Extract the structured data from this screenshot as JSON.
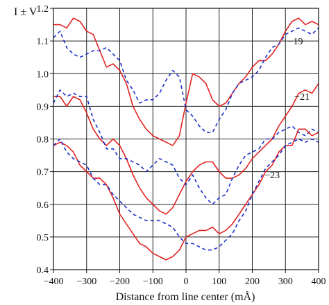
{
  "chart_data": {
    "type": "line",
    "title": "",
    "xlabel": "Distance from line center (mÅ)",
    "ylabel": "I ± V",
    "xlim": [
      -400,
      400
    ],
    "ylim": [
      0.4,
      1.2
    ],
    "x_ticks": [
      -400,
      -300,
      -200,
      -100,
      0,
      100,
      200,
      300,
      400
    ],
    "x_tick_labels": [
      "−400",
      "−300",
      "−200",
      "−100",
      "0",
      "100",
      "200",
      "300",
      "400"
    ],
    "y_ticks": [
      0.4,
      0.5,
      0.6,
      0.7,
      0.8,
      0.9,
      1.0,
      1.1,
      1.2
    ],
    "y_tick_labels": [
      "0.4",
      "0.5",
      "0.6",
      "0.7",
      "0.8",
      "0.9",
      "1.0",
      "1.1",
      "1.2"
    ],
    "grid": true,
    "colors": {
      "solid": "#e32222",
      "dashed": "#1a2dc8",
      "grid": "#222222",
      "axes": "#111111"
    },
    "annotations": [
      {
        "text": "−19",
        "x": 330,
        "y": 1.09
      },
      {
        "text": "−21",
        "x": 350,
        "y": 0.92
      },
      {
        "text": "−23",
        "x": 260,
        "y": 0.68
      }
    ],
    "series": [
      {
        "line_style": "solid",
        "color": "#e32222",
        "points": [
          [
            -400,
            1.15
          ],
          [
            -380,
            1.15
          ],
          [
            -360,
            1.14
          ],
          [
            -340,
            1.17
          ],
          [
            -320,
            1.16
          ],
          [
            -300,
            1.13
          ],
          [
            -280,
            1.12
          ],
          [
            -260,
            1.07
          ],
          [
            -240,
            1.02
          ],
          [
            -220,
            1.03
          ],
          [
            -200,
            1.01
          ],
          [
            -180,
            0.97
          ],
          [
            -160,
            0.9
          ],
          [
            -140,
            0.86
          ],
          [
            -120,
            0.83
          ],
          [
            -100,
            0.81
          ],
          [
            -80,
            0.8
          ],
          [
            -60,
            0.79
          ],
          [
            -40,
            0.78
          ],
          [
            -20,
            0.81
          ],
          [
            0,
            0.91
          ],
          [
            20,
            1.0
          ],
          [
            40,
            0.99
          ],
          [
            60,
            0.97
          ],
          [
            80,
            0.92
          ],
          [
            100,
            0.9
          ],
          [
            120,
            0.91
          ],
          [
            140,
            0.94
          ],
          [
            160,
            0.97
          ],
          [
            180,
            0.99
          ],
          [
            200,
            1.02
          ],
          [
            220,
            1.04
          ],
          [
            240,
            1.04
          ],
          [
            260,
            1.06
          ],
          [
            280,
            1.09
          ],
          [
            300,
            1.13
          ],
          [
            320,
            1.16
          ],
          [
            340,
            1.17
          ],
          [
            360,
            1.15
          ],
          [
            380,
            1.16
          ],
          [
            400,
            1.15
          ]
        ]
      },
      {
        "line_style": "dashed",
        "color": "#1a2dc8",
        "points": [
          [
            -400,
            1.11
          ],
          [
            -380,
            1.13
          ],
          [
            -360,
            1.08
          ],
          [
            -340,
            1.06
          ],
          [
            -320,
            1.05
          ],
          [
            -300,
            1.06
          ],
          [
            -280,
            1.07
          ],
          [
            -260,
            1.07
          ],
          [
            -240,
            1.08
          ],
          [
            -220,
            1.06
          ],
          [
            -200,
            1.04
          ],
          [
            -180,
            0.98
          ],
          [
            -160,
            0.95
          ],
          [
            -140,
            0.91
          ],
          [
            -120,
            0.92
          ],
          [
            -100,
            0.92
          ],
          [
            -80,
            0.94
          ],
          [
            -60,
            0.98
          ],
          [
            -40,
            1.01
          ],
          [
            -20,
            0.99
          ],
          [
            0,
            0.89
          ],
          [
            20,
            0.87
          ],
          [
            40,
            0.84
          ],
          [
            60,
            0.82
          ],
          [
            80,
            0.82
          ],
          [
            100,
            0.86
          ],
          [
            120,
            0.89
          ],
          [
            140,
            0.94
          ],
          [
            160,
            0.97
          ],
          [
            180,
            0.98
          ],
          [
            200,
            0.99
          ],
          [
            220,
            1.01
          ],
          [
            240,
            1.05
          ],
          [
            260,
            1.08
          ],
          [
            280,
            1.09
          ],
          [
            300,
            1.12
          ],
          [
            320,
            1.13
          ],
          [
            340,
            1.14
          ],
          [
            360,
            1.13
          ],
          [
            380,
            1.12
          ],
          [
            400,
            1.14
          ]
        ]
      },
      {
        "line_style": "solid",
        "color": "#e32222",
        "points": [
          [
            -400,
            0.93
          ],
          [
            -380,
            0.93
          ],
          [
            -360,
            0.9
          ],
          [
            -340,
            0.93
          ],
          [
            -320,
            0.92
          ],
          [
            -300,
            0.88
          ],
          [
            -280,
            0.83
          ],
          [
            -260,
            0.8
          ],
          [
            -240,
            0.78
          ],
          [
            -220,
            0.8
          ],
          [
            -200,
            0.78
          ],
          [
            -180,
            0.74
          ],
          [
            -160,
            0.69
          ],
          [
            -140,
            0.65
          ],
          [
            -120,
            0.62
          ],
          [
            -100,
            0.6
          ],
          [
            -80,
            0.58
          ],
          [
            -60,
            0.57
          ],
          [
            -40,
            0.59
          ],
          [
            -20,
            0.63
          ],
          [
            0,
            0.67
          ],
          [
            20,
            0.7
          ],
          [
            40,
            0.72
          ],
          [
            60,
            0.73
          ],
          [
            80,
            0.73
          ],
          [
            100,
            0.7
          ],
          [
            120,
            0.68
          ],
          [
            140,
            0.68
          ],
          [
            160,
            0.69
          ],
          [
            180,
            0.71
          ],
          [
            200,
            0.74
          ],
          [
            220,
            0.76
          ],
          [
            240,
            0.78
          ],
          [
            260,
            0.8
          ],
          [
            280,
            0.84
          ],
          [
            300,
            0.87
          ],
          [
            320,
            0.9
          ],
          [
            340,
            0.94
          ],
          [
            360,
            0.95
          ],
          [
            380,
            0.94
          ],
          [
            400,
            0.97
          ]
        ]
      },
      {
        "line_style": "dashed",
        "color": "#1a2dc8",
        "points": [
          [
            -400,
            0.91
          ],
          [
            -380,
            0.95
          ],
          [
            -360,
            0.93
          ],
          [
            -340,
            0.94
          ],
          [
            -320,
            0.93
          ],
          [
            -300,
            0.93
          ],
          [
            -280,
            0.86
          ],
          [
            -260,
            0.82
          ],
          [
            -240,
            0.77
          ],
          [
            -220,
            0.77
          ],
          [
            -200,
            0.74
          ],
          [
            -180,
            0.74
          ],
          [
            -160,
            0.73
          ],
          [
            -140,
            0.72
          ],
          [
            -120,
            0.7
          ],
          [
            -100,
            0.72
          ],
          [
            -80,
            0.74
          ],
          [
            -60,
            0.73
          ],
          [
            -40,
            0.72
          ],
          [
            -20,
            0.68
          ],
          [
            0,
            0.66
          ],
          [
            20,
            0.69
          ],
          [
            40,
            0.65
          ],
          [
            60,
            0.62
          ],
          [
            80,
            0.6
          ],
          [
            100,
            0.62
          ],
          [
            120,
            0.63
          ],
          [
            140,
            0.68
          ],
          [
            160,
            0.72
          ],
          [
            180,
            0.75
          ],
          [
            200,
            0.76
          ],
          [
            220,
            0.77
          ],
          [
            240,
            0.8
          ],
          [
            260,
            0.8
          ],
          [
            280,
            0.82
          ],
          [
            300,
            0.83
          ],
          [
            320,
            0.84
          ],
          [
            340,
            0.82
          ],
          [
            360,
            0.81
          ],
          [
            380,
            0.83
          ],
          [
            400,
            0.82
          ]
        ]
      },
      {
        "line_style": "solid",
        "color": "#e32222",
        "points": [
          [
            -400,
            0.78
          ],
          [
            -380,
            0.79
          ],
          [
            -360,
            0.78
          ],
          [
            -340,
            0.76
          ],
          [
            -320,
            0.72
          ],
          [
            -300,
            0.7
          ],
          [
            -280,
            0.68
          ],
          [
            -260,
            0.68
          ],
          [
            -240,
            0.66
          ],
          [
            -220,
            0.62
          ],
          [
            -200,
            0.57
          ],
          [
            -180,
            0.54
          ],
          [
            -160,
            0.51
          ],
          [
            -140,
            0.48
          ],
          [
            -120,
            0.47
          ],
          [
            -100,
            0.45
          ],
          [
            -80,
            0.44
          ],
          [
            -60,
            0.43
          ],
          [
            -40,
            0.44
          ],
          [
            -20,
            0.46
          ],
          [
            0,
            0.5
          ],
          [
            20,
            0.51
          ],
          [
            40,
            0.52
          ],
          [
            60,
            0.52
          ],
          [
            80,
            0.53
          ],
          [
            100,
            0.51
          ],
          [
            120,
            0.52
          ],
          [
            140,
            0.54
          ],
          [
            160,
            0.57
          ],
          [
            180,
            0.6
          ],
          [
            200,
            0.63
          ],
          [
            220,
            0.66
          ],
          [
            240,
            0.7
          ],
          [
            260,
            0.72
          ],
          [
            280,
            0.76
          ],
          [
            300,
            0.78
          ],
          [
            320,
            0.78
          ],
          [
            340,
            0.83
          ],
          [
            360,
            0.83
          ],
          [
            380,
            0.81
          ],
          [
            400,
            0.82
          ]
        ]
      },
      {
        "line_style": "dashed",
        "color": "#1a2dc8",
        "points": [
          [
            -400,
            0.78
          ],
          [
            -380,
            0.8
          ],
          [
            -360,
            0.76
          ],
          [
            -340,
            0.74
          ],
          [
            -320,
            0.73
          ],
          [
            -300,
            0.72
          ],
          [
            -280,
            0.68
          ],
          [
            -260,
            0.66
          ],
          [
            -240,
            0.66
          ],
          [
            -220,
            0.63
          ],
          [
            -200,
            0.61
          ],
          [
            -180,
            0.59
          ],
          [
            -160,
            0.57
          ],
          [
            -140,
            0.56
          ],
          [
            -120,
            0.55
          ],
          [
            -100,
            0.55
          ],
          [
            -80,
            0.55
          ],
          [
            -60,
            0.54
          ],
          [
            -40,
            0.53
          ],
          [
            -20,
            0.5
          ],
          [
            0,
            0.48
          ],
          [
            20,
            0.48
          ],
          [
            40,
            0.47
          ],
          [
            60,
            0.46
          ],
          [
            80,
            0.46
          ],
          [
            100,
            0.47
          ],
          [
            120,
            0.49
          ],
          [
            140,
            0.51
          ],
          [
            160,
            0.55
          ],
          [
            180,
            0.58
          ],
          [
            200,
            0.63
          ],
          [
            220,
            0.67
          ],
          [
            240,
            0.71
          ],
          [
            260,
            0.73
          ],
          [
            280,
            0.75
          ],
          [
            300,
            0.78
          ],
          [
            320,
            0.79
          ],
          [
            340,
            0.8
          ],
          [
            360,
            0.79
          ],
          [
            380,
            0.8
          ],
          [
            400,
            0.79
          ]
        ]
      }
    ]
  }
}
